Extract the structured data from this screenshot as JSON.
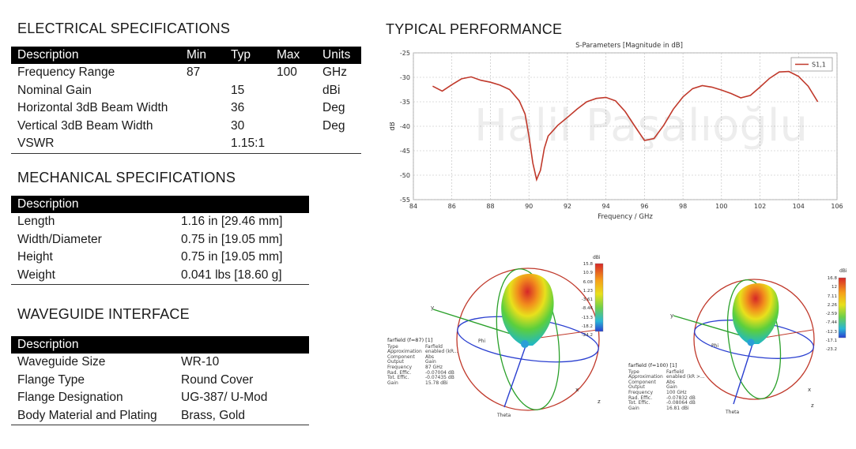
{
  "electrical": {
    "title": "ELECTRICAL SPECIFICATIONS",
    "headers": [
      "Description",
      "Min",
      "Typ",
      "Max",
      "Units"
    ],
    "rows": [
      [
        "Frequency Range",
        "87",
        "",
        "100",
        "GHz"
      ],
      [
        "Nominal Gain",
        "",
        "15",
        "",
        "dBi"
      ],
      [
        "Horizontal 3dB Beam Width",
        "",
        "36",
        "",
        "Deg"
      ],
      [
        "Vertical 3dB Beam Width",
        "",
        "30",
        "",
        "Deg"
      ],
      [
        "VSWR",
        "",
        "1.15:1",
        "",
        ""
      ]
    ]
  },
  "mechanical": {
    "title": "MECHANICAL SPECIFICATIONS",
    "header": "Description",
    "rows": [
      [
        "Length",
        "1.16 in [29.46 mm]"
      ],
      [
        "Width/Diameter",
        "0.75 in [19.05 mm]"
      ],
      [
        "Height",
        "0.75 in [19.05 mm]"
      ],
      [
        "Weight",
        "0.041 lbs [18.60 g]"
      ]
    ]
  },
  "waveguide": {
    "title": "WAVEGUIDE INTERFACE",
    "header": "Description",
    "rows": [
      [
        "Waveguide Size",
        "WR-10"
      ],
      [
        "Flange Type",
        "Round Cover"
      ],
      [
        "Flange Designation",
        "UG-387/ U-Mod"
      ],
      [
        "Body Material and Plating",
        "Brass, Gold"
      ]
    ]
  },
  "performance": {
    "title": "TYPICAL PERFORMANCE",
    "watermark": "Halil Paşalıoğlu"
  },
  "chart_data": {
    "type": "line",
    "title": "S-Parameters [Magnitude in dB]",
    "xlabel": "Frequency / GHz",
    "ylabel": "dB",
    "xlim": [
      84,
      106
    ],
    "ylim": [
      -55,
      -25
    ],
    "xticks": [
      84,
      86,
      88,
      90,
      92,
      94,
      96,
      98,
      100,
      102,
      104,
      106
    ],
    "yticks": [
      -25,
      -30,
      -35,
      -40,
      -45,
      -50,
      -55
    ],
    "grid": true,
    "legend_position": "top-right",
    "series": [
      {
        "name": "S1,1",
        "color": "#c0392b",
        "x": [
          85,
          85.5,
          86,
          86.5,
          87,
          87.5,
          88,
          88.5,
          89,
          89.5,
          89.8,
          90,
          90.2,
          90.4,
          90.6,
          90.8,
          91,
          91.5,
          92,
          92.5,
          93,
          93.5,
          94,
          94.5,
          95,
          95.5,
          96,
          96.5,
          97,
          97.5,
          98,
          98.5,
          99,
          99.5,
          100,
          100.5,
          101,
          101.5,
          102,
          102.5,
          103,
          103.5,
          104,
          104.5,
          105
        ],
        "y": [
          -31.8,
          -32.8,
          -31.5,
          -30.3,
          -29.9,
          -30.6,
          -31.0,
          -31.6,
          -32.5,
          -34.8,
          -37.5,
          -42.0,
          -47.5,
          -50.9,
          -49.0,
          -44.5,
          -42.0,
          -39.8,
          -38.2,
          -36.5,
          -35.0,
          -34.3,
          -34.1,
          -34.8,
          -37.0,
          -40.0,
          -42.9,
          -42.5,
          -39.8,
          -36.5,
          -34.0,
          -32.3,
          -31.7,
          -32.0,
          -32.6,
          -33.3,
          -34.2,
          -33.7,
          -32.0,
          -30.2,
          -28.9,
          -28.8,
          -29.8,
          -31.8,
          -35.0
        ]
      }
    ]
  },
  "farfield_left": {
    "title": "farfield (f=87) [1]",
    "unit": "dBi",
    "scale": [
      "15.8",
      "10.9",
      "6.08",
      "1.23",
      "-3.61",
      "-8.46",
      "-13.3",
      "-18.2",
      "-24.2"
    ],
    "axes": [
      "x",
      "y",
      "z",
      "Theta",
      "Phi"
    ],
    "info": [
      [
        "Type",
        "Farfield"
      ],
      [
        "Approximation",
        "enabled (kR..."
      ],
      [
        "Component",
        "Abs"
      ],
      [
        "Output",
        "Gain"
      ],
      [
        "Frequency",
        "87 GHz"
      ],
      [
        "Rad. Effic.",
        "-0.07004 dB"
      ],
      [
        "Tot. Effic.",
        "-0.07435 dB"
      ],
      [
        "Gain",
        "15.78 dBi"
      ]
    ]
  },
  "farfield_right": {
    "title": "farfield (f=100) [1]",
    "unit": "dBi",
    "scale": [
      "16.8",
      "12",
      "7.11",
      "2.26",
      "-2.59",
      "-7.44",
      "-12.3",
      "-17.1",
      "-23.2"
    ],
    "axes": [
      "x",
      "y",
      "z",
      "Theta",
      "Phi"
    ],
    "info": [
      [
        "Type",
        "Farfield"
      ],
      [
        "Approximation",
        "enabled (kR >..."
      ],
      [
        "Component",
        "Abs"
      ],
      [
        "Output",
        "Gain"
      ],
      [
        "Frequency",
        "100 GHz"
      ],
      [
        "Rad. Effic.",
        "-0.07832 dB"
      ],
      [
        "Tot. Effic.",
        "-0.08064 dB"
      ],
      [
        "Gain",
        "16.81 dBi"
      ]
    ]
  }
}
